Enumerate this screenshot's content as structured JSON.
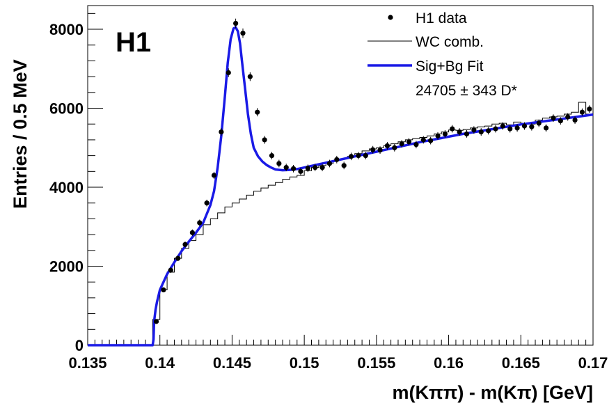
{
  "chart_data": {
    "type": "scatter",
    "experiment_label": "H1",
    "xlabel": "m(Kππ) - m(Kπ) [GeV]",
    "ylabel": "Entries / 0.5 MeV",
    "xlim": [
      0.135,
      0.17
    ],
    "ylim": [
      0,
      8600
    ],
    "x_ticks": [
      0.135,
      0.14,
      0.145,
      0.15,
      0.155,
      0.16,
      0.165,
      0.17
    ],
    "x_tick_labels": [
      "0.135",
      "0.14",
      "0.145",
      "0.15",
      "0.155",
      "0.16",
      "0.165",
      "0.17"
    ],
    "y_ticks": [
      0,
      2000,
      4000,
      6000,
      8000
    ],
    "y_tick_labels": [
      "0",
      "2000",
      "4000",
      "6000",
      "8000"
    ],
    "legend": {
      "position": "top-right",
      "entries": [
        {
          "label": "H1 data",
          "marker": "point",
          "color": "#000000"
        },
        {
          "label": "WC comb.",
          "marker": "line",
          "color": "#000000"
        },
        {
          "label": "Sig+Bg Fit",
          "marker": "thick-line",
          "color": "#1a1ae6"
        }
      ],
      "signal_yield": "24705 ± 343 D*"
    },
    "grid": false,
    "series": [
      {
        "name": "H1 data",
        "kind": "points-with-errors",
        "color": "#000000",
        "x": [
          0.13975,
          0.14025,
          0.14075,
          0.14125,
          0.14175,
          0.14225,
          0.14275,
          0.14325,
          0.14375,
          0.14425,
          0.14475,
          0.14525,
          0.14575,
          0.14625,
          0.14675,
          0.14725,
          0.14775,
          0.14825,
          0.14875,
          0.14925,
          0.14975,
          0.15025,
          0.15075,
          0.15125,
          0.15175,
          0.15225,
          0.15275,
          0.15325,
          0.15375,
          0.15425,
          0.15475,
          0.15525,
          0.15575,
          0.15625,
          0.15675,
          0.15725,
          0.15775,
          0.15825,
          0.15875,
          0.15925,
          0.15975,
          0.16025,
          0.16075,
          0.16125,
          0.16175,
          0.16225,
          0.16275,
          0.16325,
          0.16375,
          0.16425,
          0.16475,
          0.16525,
          0.16575,
          0.16625,
          0.16675,
          0.16725,
          0.16775,
          0.16825,
          0.16875,
          0.16925,
          0.16975
        ],
        "y": [
          600,
          1400,
          1900,
          2200,
          2550,
          2850,
          3100,
          3600,
          4300,
          5400,
          6900,
          8150,
          7900,
          6800,
          5900,
          5200,
          4800,
          4600,
          4500,
          4470,
          4400,
          4480,
          4500,
          4500,
          4600,
          4700,
          4550,
          4780,
          4800,
          4800,
          4950,
          4940,
          5050,
          5000,
          5100,
          5150,
          5080,
          5200,
          5180,
          5300,
          5350,
          5480,
          5400,
          5350,
          5450,
          5400,
          5430,
          5480,
          5550,
          5480,
          5500,
          5550,
          5530,
          5620,
          5500,
          5750,
          5680,
          5780,
          5700,
          5900,
          5980
        ],
        "yerr": [
          50,
          60,
          70,
          70,
          75,
          80,
          80,
          85,
          90,
          100,
          110,
          120,
          120,
          110,
          105,
          100,
          95,
          95,
          95,
          95,
          95,
          95,
          95,
          95,
          95,
          95,
          95,
          95,
          95,
          95,
          95,
          95,
          95,
          95,
          95,
          95,
          95,
          95,
          95,
          95,
          95,
          95,
          95,
          95,
          95,
          95,
          95,
          95,
          95,
          95,
          95,
          95,
          95,
          95,
          95,
          95,
          95,
          95,
          95,
          95,
          95
        ]
      },
      {
        "name": "WC comb.",
        "kind": "histogram",
        "color": "#000000",
        "bin_edges": [
          0.1395,
          0.14,
          0.1405,
          0.141,
          0.1415,
          0.142,
          0.1425,
          0.143,
          0.1435,
          0.144,
          0.1445,
          0.145,
          0.1455,
          0.146,
          0.1465,
          0.147,
          0.1475,
          0.148,
          0.1485,
          0.149,
          0.1495,
          0.15,
          0.1505,
          0.151,
          0.1515,
          0.152,
          0.1525,
          0.153,
          0.1535,
          0.154,
          0.1545,
          0.155,
          0.1555,
          0.156,
          0.1565,
          0.157,
          0.1575,
          0.158,
          0.1585,
          0.159,
          0.1595,
          0.16,
          0.1605,
          0.161,
          0.1615,
          0.162,
          0.1625,
          0.163,
          0.1635,
          0.164,
          0.1645,
          0.165,
          0.1655,
          0.166,
          0.1665,
          0.167,
          0.1675,
          0.168,
          0.1685,
          0.169,
          0.1695,
          0.17
        ],
        "values": [
          650,
          1400,
          1850,
          2200,
          2450,
          2650,
          2800,
          3050,
          3200,
          3350,
          3500,
          3600,
          3700,
          3800,
          3900,
          3980,
          4050,
          4120,
          4200,
          4260,
          4300,
          4420,
          4500,
          4550,
          4600,
          4680,
          4720,
          4780,
          4850,
          4920,
          4970,
          5000,
          5050,
          5100,
          5150,
          5200,
          5230,
          5260,
          5300,
          5350,
          5400,
          5450,
          5440,
          5460,
          5500,
          5530,
          5550,
          5600,
          5620,
          5580,
          5650,
          5620,
          5600,
          5700,
          5750,
          5780,
          5800,
          5850,
          5900,
          6150,
          5850
        ]
      },
      {
        "name": "Sig+Bg Fit",
        "kind": "fit-curve",
        "color": "#1a1ae6",
        "x": [
          0.135,
          0.1395,
          0.13956,
          0.1396,
          0.1397,
          0.1398,
          0.14,
          0.1405,
          0.141,
          0.1415,
          0.142,
          0.1425,
          0.143,
          0.1435,
          0.14375,
          0.144,
          0.14425,
          0.1445,
          0.1447,
          0.1449,
          0.1451,
          0.14525,
          0.1454,
          0.14555,
          0.1457,
          0.1459,
          0.1461,
          0.1463,
          0.1465,
          0.1468,
          0.1471,
          0.1474,
          0.1477,
          0.148,
          0.1485,
          0.149,
          0.1495,
          0.15,
          0.151,
          0.152,
          0.153,
          0.154,
          0.155,
          0.156,
          0.157,
          0.158,
          0.159,
          0.16,
          0.161,
          0.162,
          0.163,
          0.164,
          0.165,
          0.166,
          0.167,
          0.168,
          0.169,
          0.17
        ],
        "y": [
          0,
          0,
          150,
          600,
          900,
          1100,
          1400,
          1800,
          2100,
          2380,
          2620,
          2850,
          3100,
          3550,
          3900,
          4500,
          5300,
          6300,
          7150,
          7750,
          8020,
          8050,
          7950,
          7650,
          7150,
          6500,
          5850,
          5350,
          5000,
          4780,
          4650,
          4560,
          4500,
          4450,
          4430,
          4440,
          4460,
          4500,
          4580,
          4660,
          4740,
          4820,
          4900,
          4980,
          5060,
          5140,
          5210,
          5280,
          5350,
          5410,
          5470,
          5530,
          5590,
          5640,
          5690,
          5740,
          5790,
          5840
        ]
      }
    ]
  }
}
